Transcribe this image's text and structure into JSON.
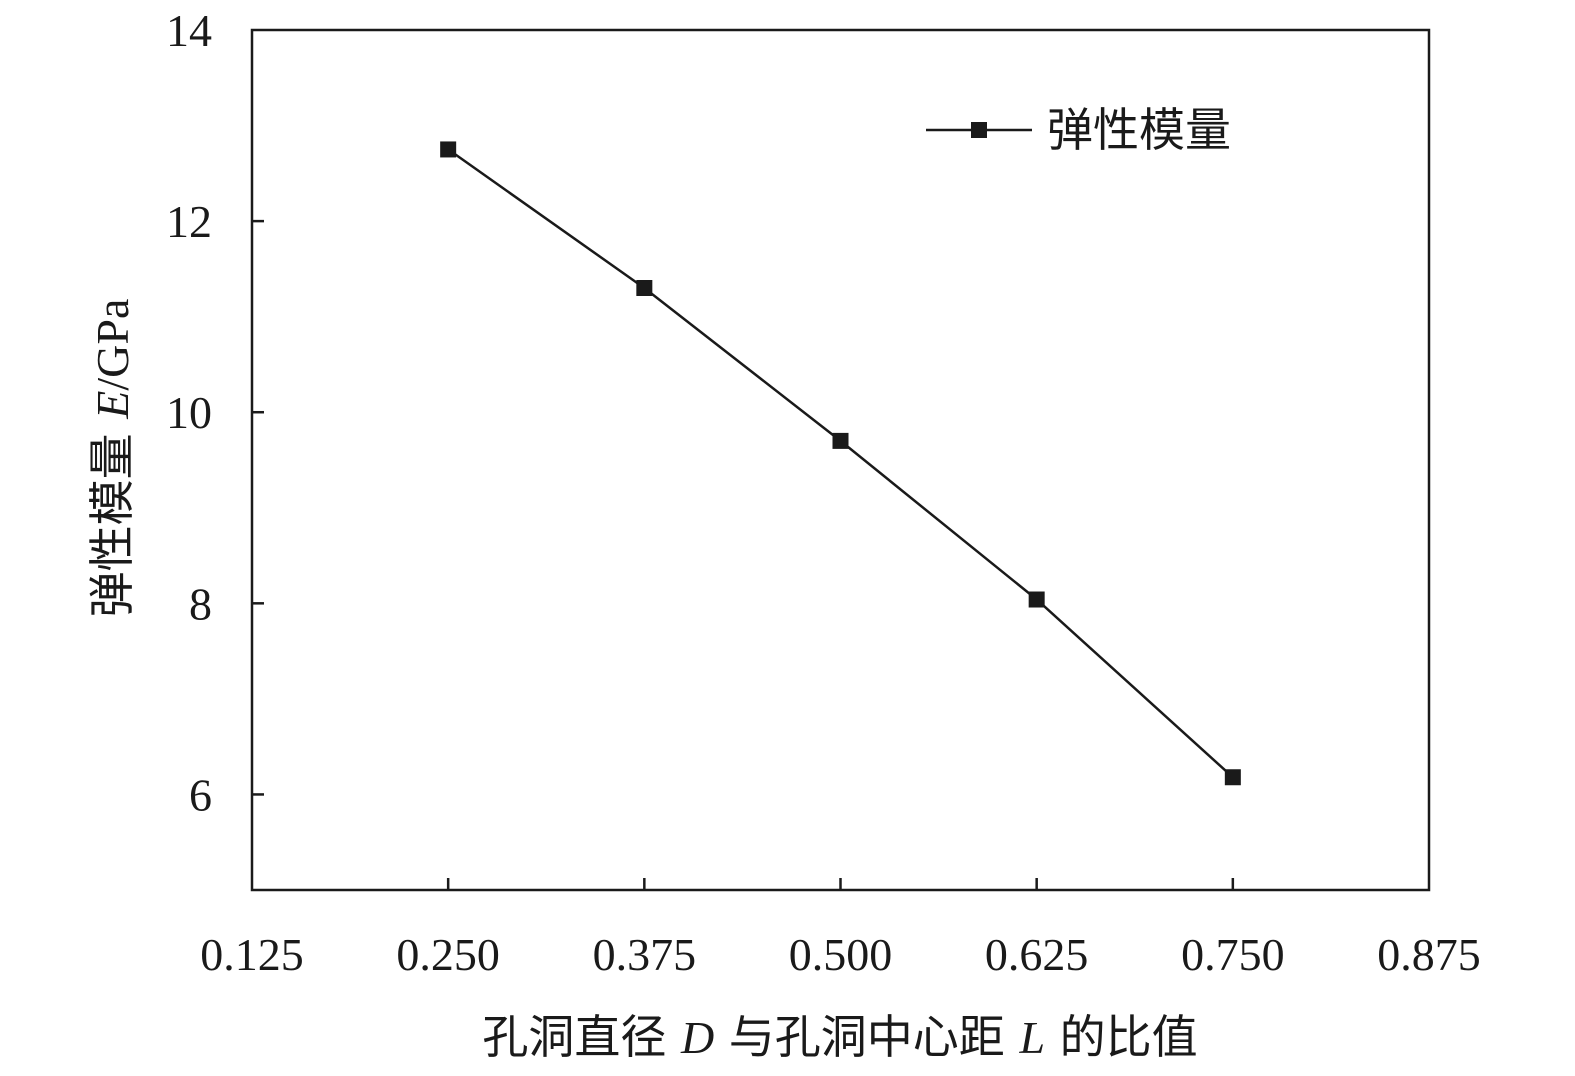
{
  "chart_data": {
    "type": "line",
    "x": [
      0.25,
      0.375,
      0.5,
      0.625,
      0.75
    ],
    "series": [
      {
        "name": "弹性模量",
        "values": [
          12.75,
          11.3,
          9.7,
          8.04,
          6.18
        ]
      }
    ],
    "xlim": [
      0.125,
      0.875
    ],
    "ylim": [
      5,
      14
    ],
    "x_ticks": [
      "0.125",
      "0.250",
      "0.375",
      "0.500",
      "0.625",
      "0.750",
      "0.875"
    ],
    "y_ticks": [
      "6",
      "8",
      "10",
      "12",
      "14"
    ],
    "xlabel": {
      "pre": "孔洞直径 ",
      "var1": "D",
      "mid": " 与孔洞中心距 ",
      "var2": "L",
      "post": " 的比值"
    },
    "ylabel": {
      "pre": "弹性模量 ",
      "var": "E",
      "unit": "/GPa"
    },
    "legend_position": "top-right",
    "grid": false,
    "marker": "square",
    "colors": {
      "line": "#1a1a1a",
      "marker": "#1a1a1a",
      "axis": "#1a1a1a"
    }
  }
}
